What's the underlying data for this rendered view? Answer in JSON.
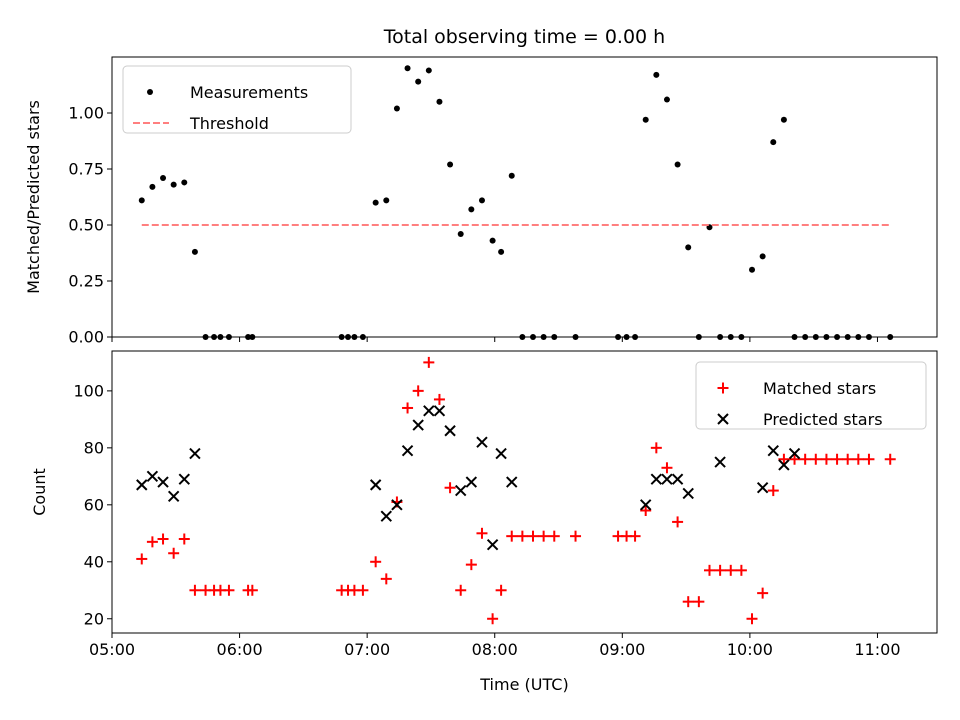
{
  "chart_data": [
    {
      "type": "scatter",
      "title": "Total observing time = 0.00 h",
      "xlabel": "",
      "ylabel": "Matched/Predicted stars",
      "ylim": [
        0.0,
        1.25
      ],
      "yticks": [
        0.0,
        0.25,
        0.5,
        0.75,
        1.0
      ],
      "ytick_labels": [
        "0.00",
        "0.25",
        "0.50",
        "0.75",
        "1.00"
      ],
      "xlim": [
        "05:00",
        "11:28"
      ],
      "xticks": [
        "05:00",
        "06:00",
        "07:00",
        "08:00",
        "09:00",
        "10:00",
        "11:00"
      ],
      "show_xtick_labels": false,
      "legend_position": "top-left",
      "series": [
        {
          "name": "Measurements",
          "marker": "dot",
          "color": "#000000",
          "x": [
            "05:14",
            "05:19",
            "05:24",
            "05:29",
            "05:34",
            "05:39",
            "05:44",
            "05:48",
            "05:51",
            "05:55",
            "06:04",
            "06:06",
            "06:48",
            "06:51",
            "06:54",
            "06:58",
            "07:04",
            "07:09",
            "07:14",
            "07:19",
            "07:24",
            "07:29",
            "07:34",
            "07:39",
            "07:44",
            "07:49",
            "07:54",
            "07:59",
            "08:03",
            "08:08",
            "08:13",
            "08:18",
            "08:23",
            "08:28",
            "08:38",
            "08:58",
            "09:02",
            "09:06",
            "09:11",
            "09:16",
            "09:21",
            "09:26",
            "09:31",
            "09:36",
            "09:41",
            "09:46",
            "09:51",
            "09:56",
            "10:01",
            "10:06",
            "10:11",
            "10:16",
            "10:21",
            "10:26",
            "10:31",
            "10:36",
            "10:41",
            "10:46",
            "10:51",
            "10:56",
            "11:06"
          ],
          "y": [
            0.61,
            0.67,
            0.71,
            0.68,
            0.69,
            0.38,
            0.0,
            0.0,
            0.0,
            0.0,
            0.0,
            0.0,
            0.0,
            0.0,
            0.0,
            0.0,
            0.6,
            0.61,
            1.02,
            1.2,
            1.14,
            1.19,
            1.05,
            0.77,
            0.46,
            0.57,
            0.61,
            0.43,
            0.38,
            0.72,
            0.0,
            0.0,
            0.0,
            0.0,
            0.0,
            0.0,
            0.0,
            0.0,
            0.97,
            1.17,
            1.06,
            0.77,
            0.4,
            0.0,
            0.49,
            0.0,
            0.0,
            0.0,
            0.3,
            0.36,
            0.87,
            0.97,
            0.0,
            0.0,
            0.0,
            0.0,
            0.0,
            0.0,
            0.0,
            0.0,
            0.0
          ]
        },
        {
          "name": "Threshold",
          "line_style": "dashed",
          "color": "#ff7f7f",
          "x": [
            "05:14",
            "11:06"
          ],
          "y": [
            0.5,
            0.5
          ]
        }
      ]
    },
    {
      "type": "scatter",
      "title": "",
      "xlabel": "Time (UTC)",
      "ylabel": "Count",
      "ylim": [
        15,
        114
      ],
      "yticks": [
        20,
        40,
        60,
        80,
        100
      ],
      "ytick_labels": [
        "20",
        "40",
        "60",
        "80",
        "100"
      ],
      "xlim": [
        "05:00",
        "11:28"
      ],
      "xticks": [
        "05:00",
        "06:00",
        "07:00",
        "08:00",
        "09:00",
        "10:00",
        "11:00"
      ],
      "xtick_labels": [
        "05:00",
        "06:00",
        "07:00",
        "08:00",
        "09:00",
        "10:00",
        "11:00"
      ],
      "legend_position": "top-right",
      "series": [
        {
          "name": "Matched stars",
          "marker": "plus",
          "color": "#ff0000",
          "x": [
            "05:14",
            "05:19",
            "05:24",
            "05:29",
            "05:34",
            "05:39",
            "05:44",
            "05:48",
            "05:51",
            "05:55",
            "06:04",
            "06:06",
            "06:48",
            "06:51",
            "06:54",
            "06:58",
            "07:04",
            "07:09",
            "07:14",
            "07:19",
            "07:24",
            "07:29",
            "07:34",
            "07:39",
            "07:44",
            "07:49",
            "07:54",
            "07:59",
            "08:03",
            "08:08",
            "08:13",
            "08:18",
            "08:23",
            "08:28",
            "08:38",
            "08:58",
            "09:02",
            "09:06",
            "09:11",
            "09:16",
            "09:21",
            "09:26",
            "09:31",
            "09:36",
            "09:41",
            "09:46",
            "09:51",
            "09:56",
            "10:01",
            "10:06",
            "10:11",
            "10:16",
            "10:21",
            "10:26",
            "10:31",
            "10:36",
            "10:41",
            "10:46",
            "10:51",
            "10:56",
            "11:06"
          ],
          "y": [
            41,
            47,
            48,
            43,
            48,
            30,
            30,
            30,
            30,
            30,
            30,
            30,
            30,
            30,
            30,
            30,
            40,
            34,
            61,
            94,
            100,
            110,
            97,
            66,
            30,
            39,
            50,
            20,
            30,
            49,
            49,
            49,
            49,
            49,
            49,
            49,
            49,
            49,
            58,
            80,
            73,
            54,
            26,
            26,
            37,
            37,
            37,
            37,
            20,
            29,
            65,
            76,
            76,
            76,
            76,
            76,
            76,
            76,
            76,
            76,
            76
          ]
        },
        {
          "name": "Predicted stars",
          "marker": "x",
          "color": "#000000",
          "x": [
            "05:14",
            "05:19",
            "05:24",
            "05:29",
            "05:34",
            "05:39",
            "07:04",
            "07:09",
            "07:14",
            "07:19",
            "07:24",
            "07:29",
            "07:34",
            "07:39",
            "07:44",
            "07:49",
            "07:54",
            "07:59",
            "08:03",
            "08:08",
            "09:11",
            "09:16",
            "09:21",
            "09:26",
            "09:31",
            "09:46",
            "10:06",
            "10:11",
            "10:16",
            "10:21"
          ],
          "y": [
            67,
            70,
            68,
            63,
            69,
            78,
            67,
            56,
            60,
            79,
            88,
            93,
            93,
            86,
            65,
            68,
            82,
            46,
            78,
            68,
            60,
            69,
            69,
            69,
            64,
            75,
            66,
            79,
            74,
            78
          ]
        }
      ]
    }
  ]
}
